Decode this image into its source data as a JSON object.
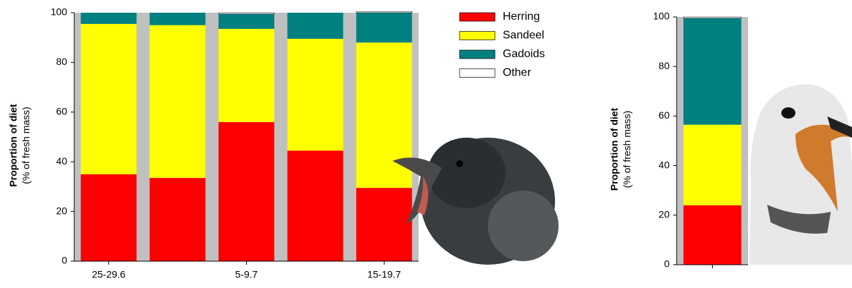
{
  "chart_data": [
    {
      "type": "stacked-bar",
      "ylabel": "Proportion of diet",
      "ylabel_sub": "(% of fresh mass)",
      "categories": [
        "25-29.6",
        null,
        "5-9.7",
        null,
        "15-19.7"
      ],
      "series": [
        {
          "name": "Herring",
          "color": "#ff0000",
          "values": [
            35,
            33.5,
            56,
            44.5,
            29.5
          ]
        },
        {
          "name": "Sandeel",
          "color": "#ffff00",
          "values": [
            60.5,
            61.5,
            37.5,
            45,
            58.5
          ]
        },
        {
          "name": "Gadoids",
          "color": "#008080",
          "values": [
            4.5,
            5,
            6,
            10.5,
            12
          ]
        },
        {
          "name": "Other",
          "color": "#ffffff",
          "values": [
            0,
            0,
            0.5,
            0,
            0.5
          ]
        }
      ],
      "ylim": [
        0,
        100
      ],
      "yticks": [
        0,
        20,
        40,
        60,
        80,
        100
      ],
      "background": "#c0c0c0",
      "legend": "upper right"
    },
    {
      "type": "stacked-bar",
      "ylabel": "Proportion of diet",
      "ylabel_sub": "(% of fresh mass)",
      "categories": [
        null
      ],
      "series": [
        {
          "color": "#ff0000",
          "values": [
            24
          ]
        },
        {
          "color": "#ffff00",
          "values": [
            32.5
          ]
        },
        {
          "color": "#008080",
          "values": [
            43
          ]
        },
        {
          "color": "#ffffff",
          "values": [
            0.5
          ]
        }
      ],
      "ylim": [
        0,
        100
      ],
      "yticks": [
        0,
        20,
        40,
        60,
        80,
        100
      ],
      "background": "#c0c0c0"
    }
  ]
}
